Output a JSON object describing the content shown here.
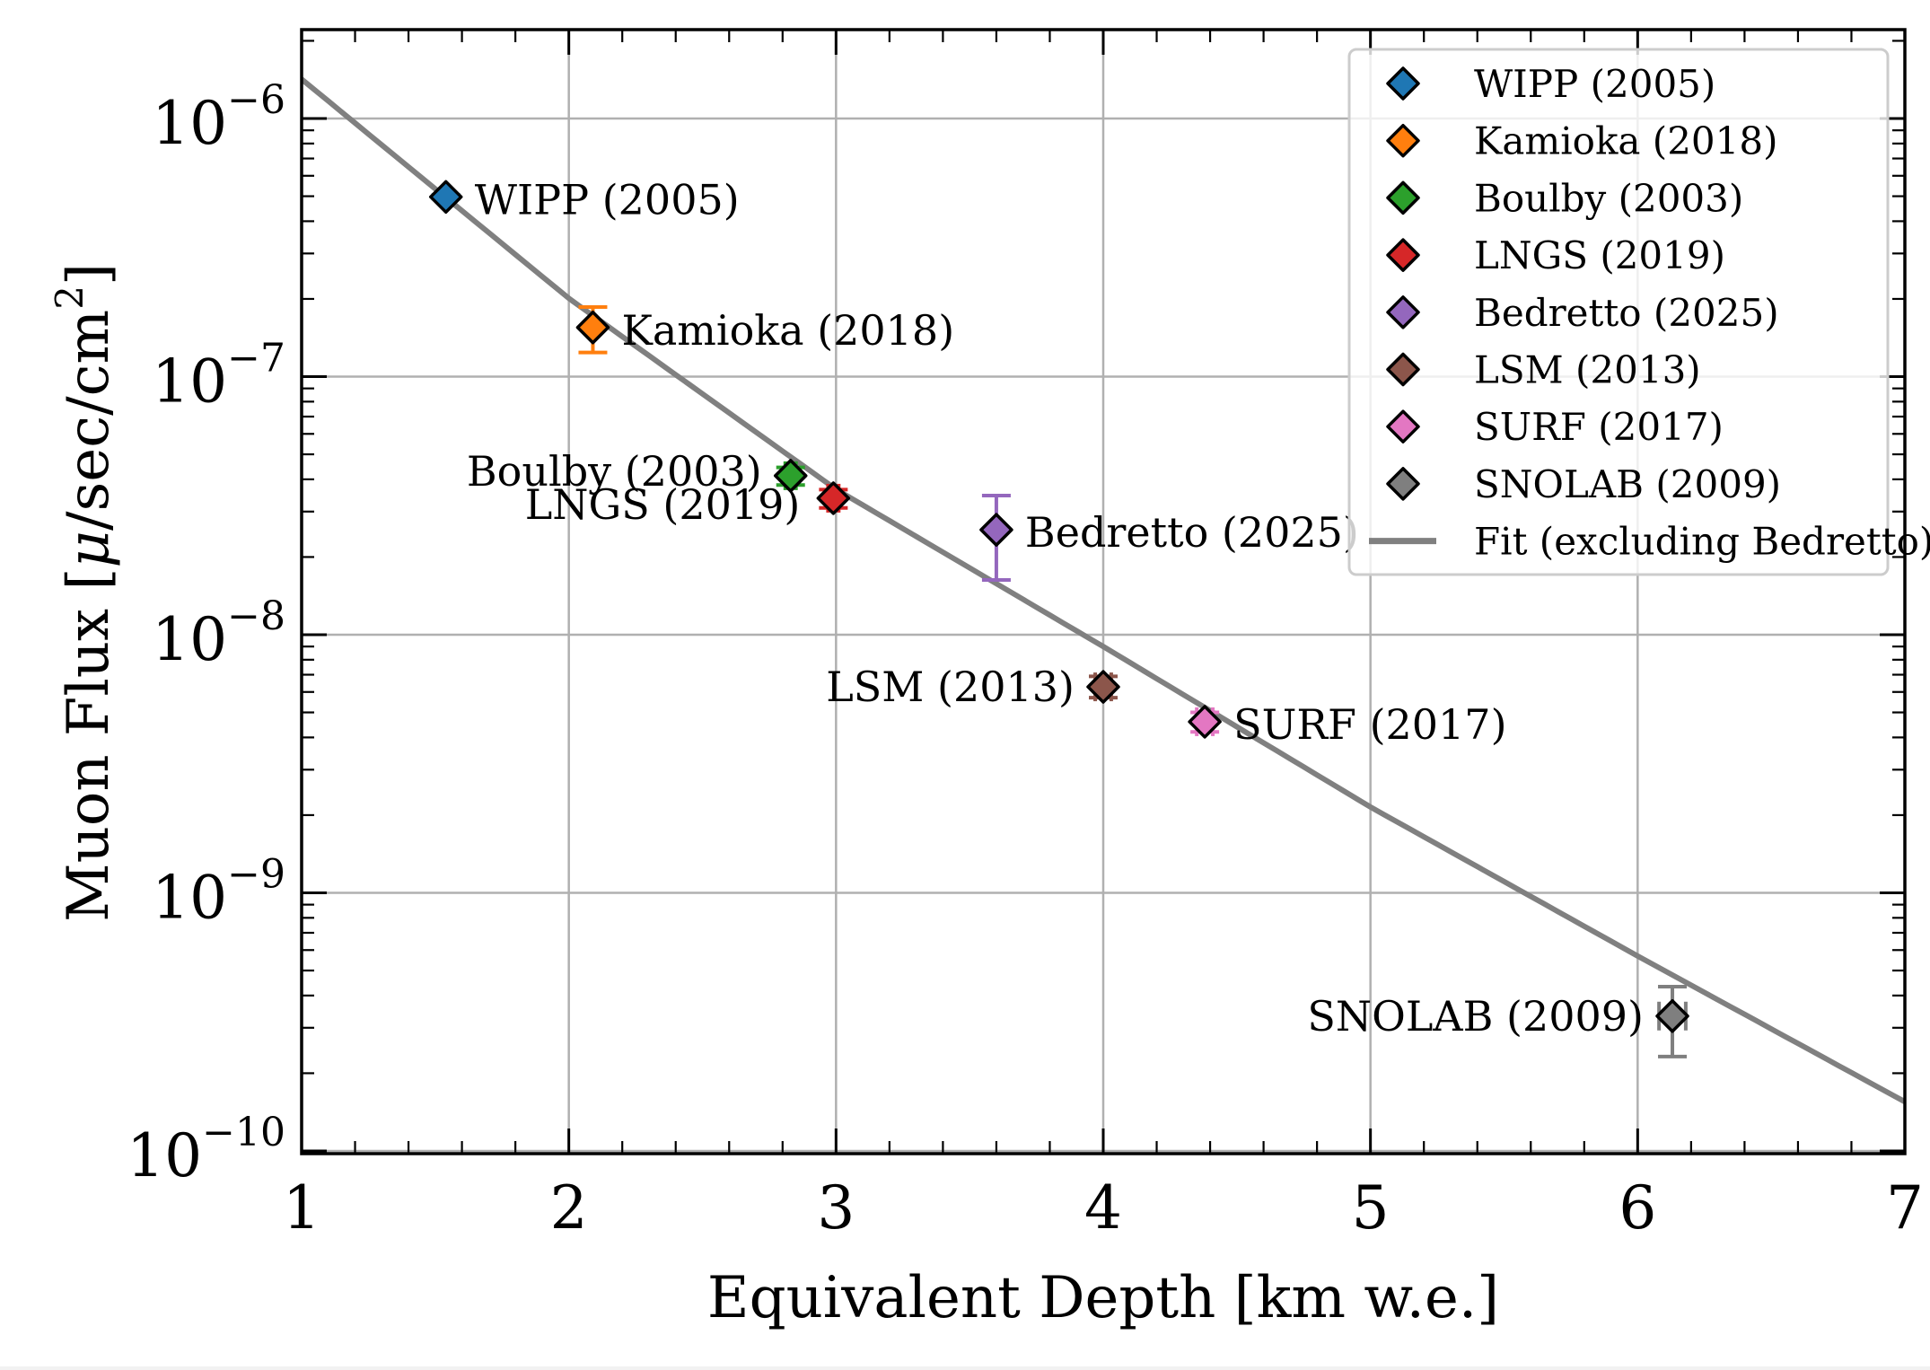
{
  "chart_data": {
    "type": "scatter",
    "title": "",
    "xlabel": "Equivalent Depth [km w.e.]",
    "ylabel": "Muon Flux [μ/sec/cm²]",
    "ylabel_parts": {
      "prefix": "Muon Flux [",
      "mu": "μ",
      "mid": "/sec/cm",
      "sup": "2",
      "suffix": "]"
    },
    "xlim": [
      1,
      7
    ],
    "ylim": [
      9.76e-11,
      2.21e-06
    ],
    "yscale": "log",
    "grid": true,
    "legend_position": "top-right",
    "xticks": [
      1,
      2,
      3,
      4,
      5,
      6,
      7
    ],
    "xtick_labels": [
      "1",
      "2",
      "3",
      "4",
      "5",
      "6",
      "7"
    ],
    "yticks": [
      1e-10,
      1e-09,
      1e-08,
      1e-07,
      1e-06
    ],
    "ytick_labels": [
      {
        "base": "10",
        "exp": "−10"
      },
      {
        "base": "10",
        "exp": "−9"
      },
      {
        "base": "10",
        "exp": "−8"
      },
      {
        "base": "10",
        "exp": "−7"
      },
      {
        "base": "10",
        "exp": "−6"
      }
    ],
    "series": [
      {
        "name": "WIPP (2005)",
        "label": "WIPP (2005)",
        "label_side": "right",
        "color": "#1f77b4",
        "x": 1.54,
        "y": 4.97e-07,
        "y_err": [
          4.9e-07,
          5.05e-07
        ],
        "x_err": 0
      },
      {
        "name": "Kamioka (2018)",
        "label": "Kamioka (2018)",
        "label_side": "right",
        "color": "#ff7f0e",
        "x": 2.09,
        "y": 1.55e-07,
        "y_err": [
          1.24e-07,
          1.86e-07
        ],
        "x_err": 0
      },
      {
        "name": "Boulby (2003)",
        "label": "Boulby (2003)",
        "label_side": "left-up",
        "color": "#2ca02c",
        "x": 2.83,
        "y": 4.13e-08,
        "y_err": [
          3.8e-08,
          4.45e-08
        ],
        "x_err": 0.02
      },
      {
        "name": "LNGS (2019)",
        "label": "LNGS (2019)",
        "label_side": "left-down",
        "color": "#d62728",
        "x": 2.99,
        "y": 3.38e-08,
        "y_err": [
          3.1e-08,
          3.65e-08
        ],
        "x_err": 0.02
      },
      {
        "name": "Bedretto (2025)",
        "label": "Bedretto (2025)",
        "label_side": "right",
        "color": "#9467bd",
        "x": 3.6,
        "y": 2.55e-08,
        "y_err": [
          1.63e-08,
          3.46e-08
        ],
        "x_err": 0
      },
      {
        "name": "LSM (2013)",
        "label": "LSM (2013)",
        "label_side": "left",
        "color": "#8c564b",
        "x": 4.0,
        "y": 6.28e-09,
        "y_err": [
          5.7e-09,
          6.9e-09
        ],
        "x_err": 0.03
      },
      {
        "name": "SURF (2017)",
        "label": "SURF (2017)",
        "label_side": "right",
        "color": "#e377c2",
        "x": 4.38,
        "y": 4.6e-09,
        "y_err": [
          4.2e-09,
          5e-09
        ],
        "x_err": 0.03
      },
      {
        "name": "SNOLAB (2009)",
        "label": "SNOLAB (2009)",
        "label_side": "left",
        "color": "#7f7f7f",
        "x": 6.13,
        "y": 3.33e-10,
        "y_err": [
          2.32e-10,
          4.33e-10
        ],
        "x_err": 0.05
      }
    ],
    "fit": {
      "name": "Fit (excluding Bedretto)",
      "color": "#808080",
      "x": [
        1,
        2,
        3,
        4,
        5,
        6,
        7
      ],
      "y": [
        1.42e-06,
        2.01e-07,
        3.66e-08,
        9e-09,
        2.15e-09,
        5.69e-10,
        1.55e-10
      ]
    },
    "legend": [
      {
        "label": "WIPP (2005)",
        "type": "marker",
        "color": "#1f77b4"
      },
      {
        "label": "Kamioka (2018)",
        "type": "marker",
        "color": "#ff7f0e"
      },
      {
        "label": "Boulby (2003)",
        "type": "marker",
        "color": "#2ca02c"
      },
      {
        "label": "LNGS (2019)",
        "type": "marker",
        "color": "#d62728"
      },
      {
        "label": "Bedretto (2025)",
        "type": "marker",
        "color": "#9467bd"
      },
      {
        "label": "LSM (2013)",
        "type": "marker",
        "color": "#8c564b"
      },
      {
        "label": "SURF (2017)",
        "type": "marker",
        "color": "#e377c2"
      },
      {
        "label": "SNOLAB (2009)",
        "type": "marker",
        "color": "#7f7f7f"
      },
      {
        "label": "Fit (excluding Bedretto)",
        "type": "line",
        "color": "#808080"
      }
    ]
  },
  "colors": {
    "grid": "#b0b0b0",
    "axis": "#000000",
    "legend_border": "#cccccc"
  }
}
